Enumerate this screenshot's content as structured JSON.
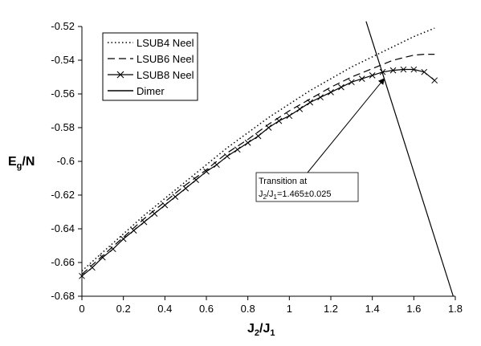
{
  "chart_data": {
    "type": "line",
    "xlabel": {
      "main": "J",
      "sub1": "2",
      "slash": "/J",
      "sub2": "1"
    },
    "ylabel": {
      "main": "E",
      "sub": "g",
      "rest": "/N"
    },
    "xlim": [
      0,
      1.8
    ],
    "ylim": [
      -0.68,
      -0.52
    ],
    "xticks": [
      0,
      0.2,
      0.4,
      0.6,
      0.8,
      1,
      1.2,
      1.4,
      1.6,
      1.8
    ],
    "xtick_labels": [
      "0",
      "0.2",
      "0.4",
      "0.6",
      "0.8",
      "1",
      "1.2",
      "1.4",
      "1.6",
      "1.8"
    ],
    "yticks": [
      -0.52,
      -0.54,
      -0.56,
      -0.58,
      -0.6,
      -0.62,
      -0.64,
      -0.66,
      -0.68
    ],
    "ytick_labels": [
      "-0.52",
      "-0.54",
      "-0.56",
      "-0.58",
      "-0.6",
      "-0.62",
      "-0.64",
      "-0.66",
      "-0.68"
    ],
    "grid": false,
    "legend_position": "top-left",
    "series": [
      {
        "name": "LSUB4 Neel",
        "style": "dotted",
        "color": "#000000",
        "x": [
          0,
          0.1,
          0.2,
          0.3,
          0.4,
          0.5,
          0.6,
          0.7,
          0.8,
          0.9,
          1.0,
          1.1,
          1.2,
          1.3,
          1.4,
          1.5,
          1.6,
          1.7
        ],
        "y": [
          -0.665,
          -0.654,
          -0.643,
          -0.632,
          -0.622,
          -0.612,
          -0.602,
          -0.592,
          -0.583,
          -0.574,
          -0.566,
          -0.558,
          -0.551,
          -0.544,
          -0.538,
          -0.532,
          -0.526,
          -0.521
        ]
      },
      {
        "name": "LSUB6 Neel",
        "style": "dashed",
        "color": "#000000",
        "x": [
          0,
          0.1,
          0.2,
          0.3,
          0.4,
          0.5,
          0.6,
          0.7,
          0.8,
          0.9,
          1.0,
          1.1,
          1.2,
          1.3,
          1.4,
          1.5,
          1.6,
          1.65,
          1.7
        ],
        "y": [
          -0.667,
          -0.656,
          -0.645,
          -0.634,
          -0.624,
          -0.614,
          -0.605,
          -0.595,
          -0.587,
          -0.578,
          -0.57,
          -0.563,
          -0.556,
          -0.55,
          -0.545,
          -0.54,
          -0.537,
          -0.5365,
          -0.5365
        ]
      },
      {
        "name": "LSUB8 Neel",
        "style": "solid-x",
        "color": "#000000",
        "x": [
          0,
          0.05,
          0.1,
          0.15,
          0.2,
          0.25,
          0.3,
          0.35,
          0.4,
          0.45,
          0.5,
          0.55,
          0.6,
          0.65,
          0.7,
          0.75,
          0.8,
          0.85,
          0.9,
          0.95,
          1.0,
          1.05,
          1.1,
          1.15,
          1.2,
          1.25,
          1.3,
          1.35,
          1.4,
          1.45,
          1.5,
          1.55,
          1.6,
          1.65,
          1.7
        ],
        "y": [
          -0.668,
          -0.663,
          -0.657,
          -0.652,
          -0.646,
          -0.641,
          -0.636,
          -0.631,
          -0.626,
          -0.621,
          -0.616,
          -0.611,
          -0.606,
          -0.602,
          -0.597,
          -0.593,
          -0.589,
          -0.585,
          -0.58,
          -0.576,
          -0.573,
          -0.569,
          -0.565,
          -0.562,
          -0.559,
          -0.556,
          -0.553,
          -0.551,
          -0.549,
          -0.547,
          -0.546,
          -0.5455,
          -0.5455,
          -0.547,
          -0.552
        ]
      },
      {
        "name": "Dimer",
        "style": "solid",
        "color": "#000000",
        "x": [
          1.37,
          1.79
        ],
        "y": [
          -0.517,
          -0.68
        ]
      }
    ],
    "annotations": [
      {
        "line1": "Transition at",
        "line2": {
          "a": "J",
          "a_sub": "2",
          "b": "/J",
          "b_sub": "1",
          "rest": "=1.465±0.025"
        },
        "points_to": {
          "x": 1.465,
          "y": -0.549
        }
      }
    ]
  }
}
